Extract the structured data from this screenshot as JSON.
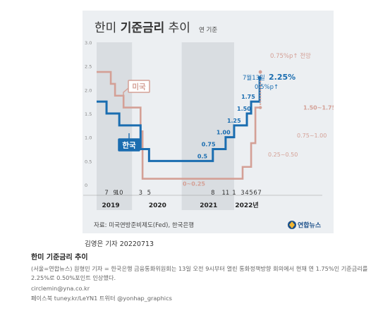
{
  "chart_data": {
    "type": "line",
    "title_part1": "한미 ",
    "title_part2": "기준금리",
    "title_part3": " 추이",
    "subtitle": "연 기준",
    "ylim": [
      0,
      3.0
    ],
    "yticks": [
      "0",
      "0.5",
      "1.0",
      "1.5",
      "2.0",
      "2.5",
      "3.0"
    ],
    "x_month_labels": [
      "7",
      "9",
      "10",
      "3",
      "5",
      "8",
      "11",
      "1",
      "3",
      "4",
      "5",
      "6",
      "7"
    ],
    "year_labels": [
      "2019",
      "2020",
      "2021",
      "2022년"
    ],
    "series": [
      {
        "name": "미국",
        "color": "#d4a096",
        "x": [
          "2019-05",
          "2019-08",
          "2019-09",
          "2019-11",
          "2020-03",
          "2020-03-15",
          "2022-03",
          "2022-05",
          "2022-06",
          "2022-07"
        ],
        "values": [
          2.375,
          2.125,
          1.875,
          1.625,
          1.125,
          0.125,
          0.375,
          0.875,
          1.625,
          1.625
        ]
      },
      {
        "name": "한국",
        "color": "#1a6db0",
        "x": [
          "2019-05",
          "2019-07",
          "2019-10",
          "2020-03",
          "2020-05",
          "2021-08",
          "2021-11",
          "2022-01",
          "2022-04",
          "2022-05",
          "2022-07"
        ],
        "values": [
          1.75,
          1.5,
          1.25,
          0.75,
          0.5,
          0.75,
          1.0,
          1.25,
          1.5,
          1.75,
          2.25
        ]
      }
    ],
    "annotations": {
      "korea_levels": [
        "0.5",
        "0.75",
        "1.00",
        "1.25",
        "1.50",
        "1.75"
      ],
      "korea_latest_date": "7월13일",
      "korea_latest_value": "2.25%",
      "korea_latest_change": "0.5%p↑",
      "us_levels": [
        "0~0.25",
        "0.25~0.50",
        "0.75~1.00",
        "1.50~1.75"
      ],
      "us_forecast": "0.75%p↑ 전망",
      "us_forecast_value": 2.375
    },
    "grid": false,
    "legend": "inline"
  },
  "source": "자료: 미국연방준비제도(Fed), 한국은행",
  "logo_text": "연합뉴스",
  "author": "김영은 기자  20220713",
  "article": {
    "title": "한미 기준금리 추이",
    "body": "(서울=연합뉴스) 원형민 기자 = 한국은행 금융통화위원회는 13일 오전 9시부터 열린 통화정책방향 회의에서 현재 연 1.75%인 기준금리를 2.25%로 0.50%포인트 인상했다.",
    "email": "circlemin@yna.co.kr",
    "sns": "페이스북 tuney.kr/LeYN1 트위터 @yonhap_graphics"
  },
  "colors": {
    "korea": "#1a6db0",
    "us": "#d4a096",
    "band": "#d9dde1",
    "background": "#eceff2"
  }
}
